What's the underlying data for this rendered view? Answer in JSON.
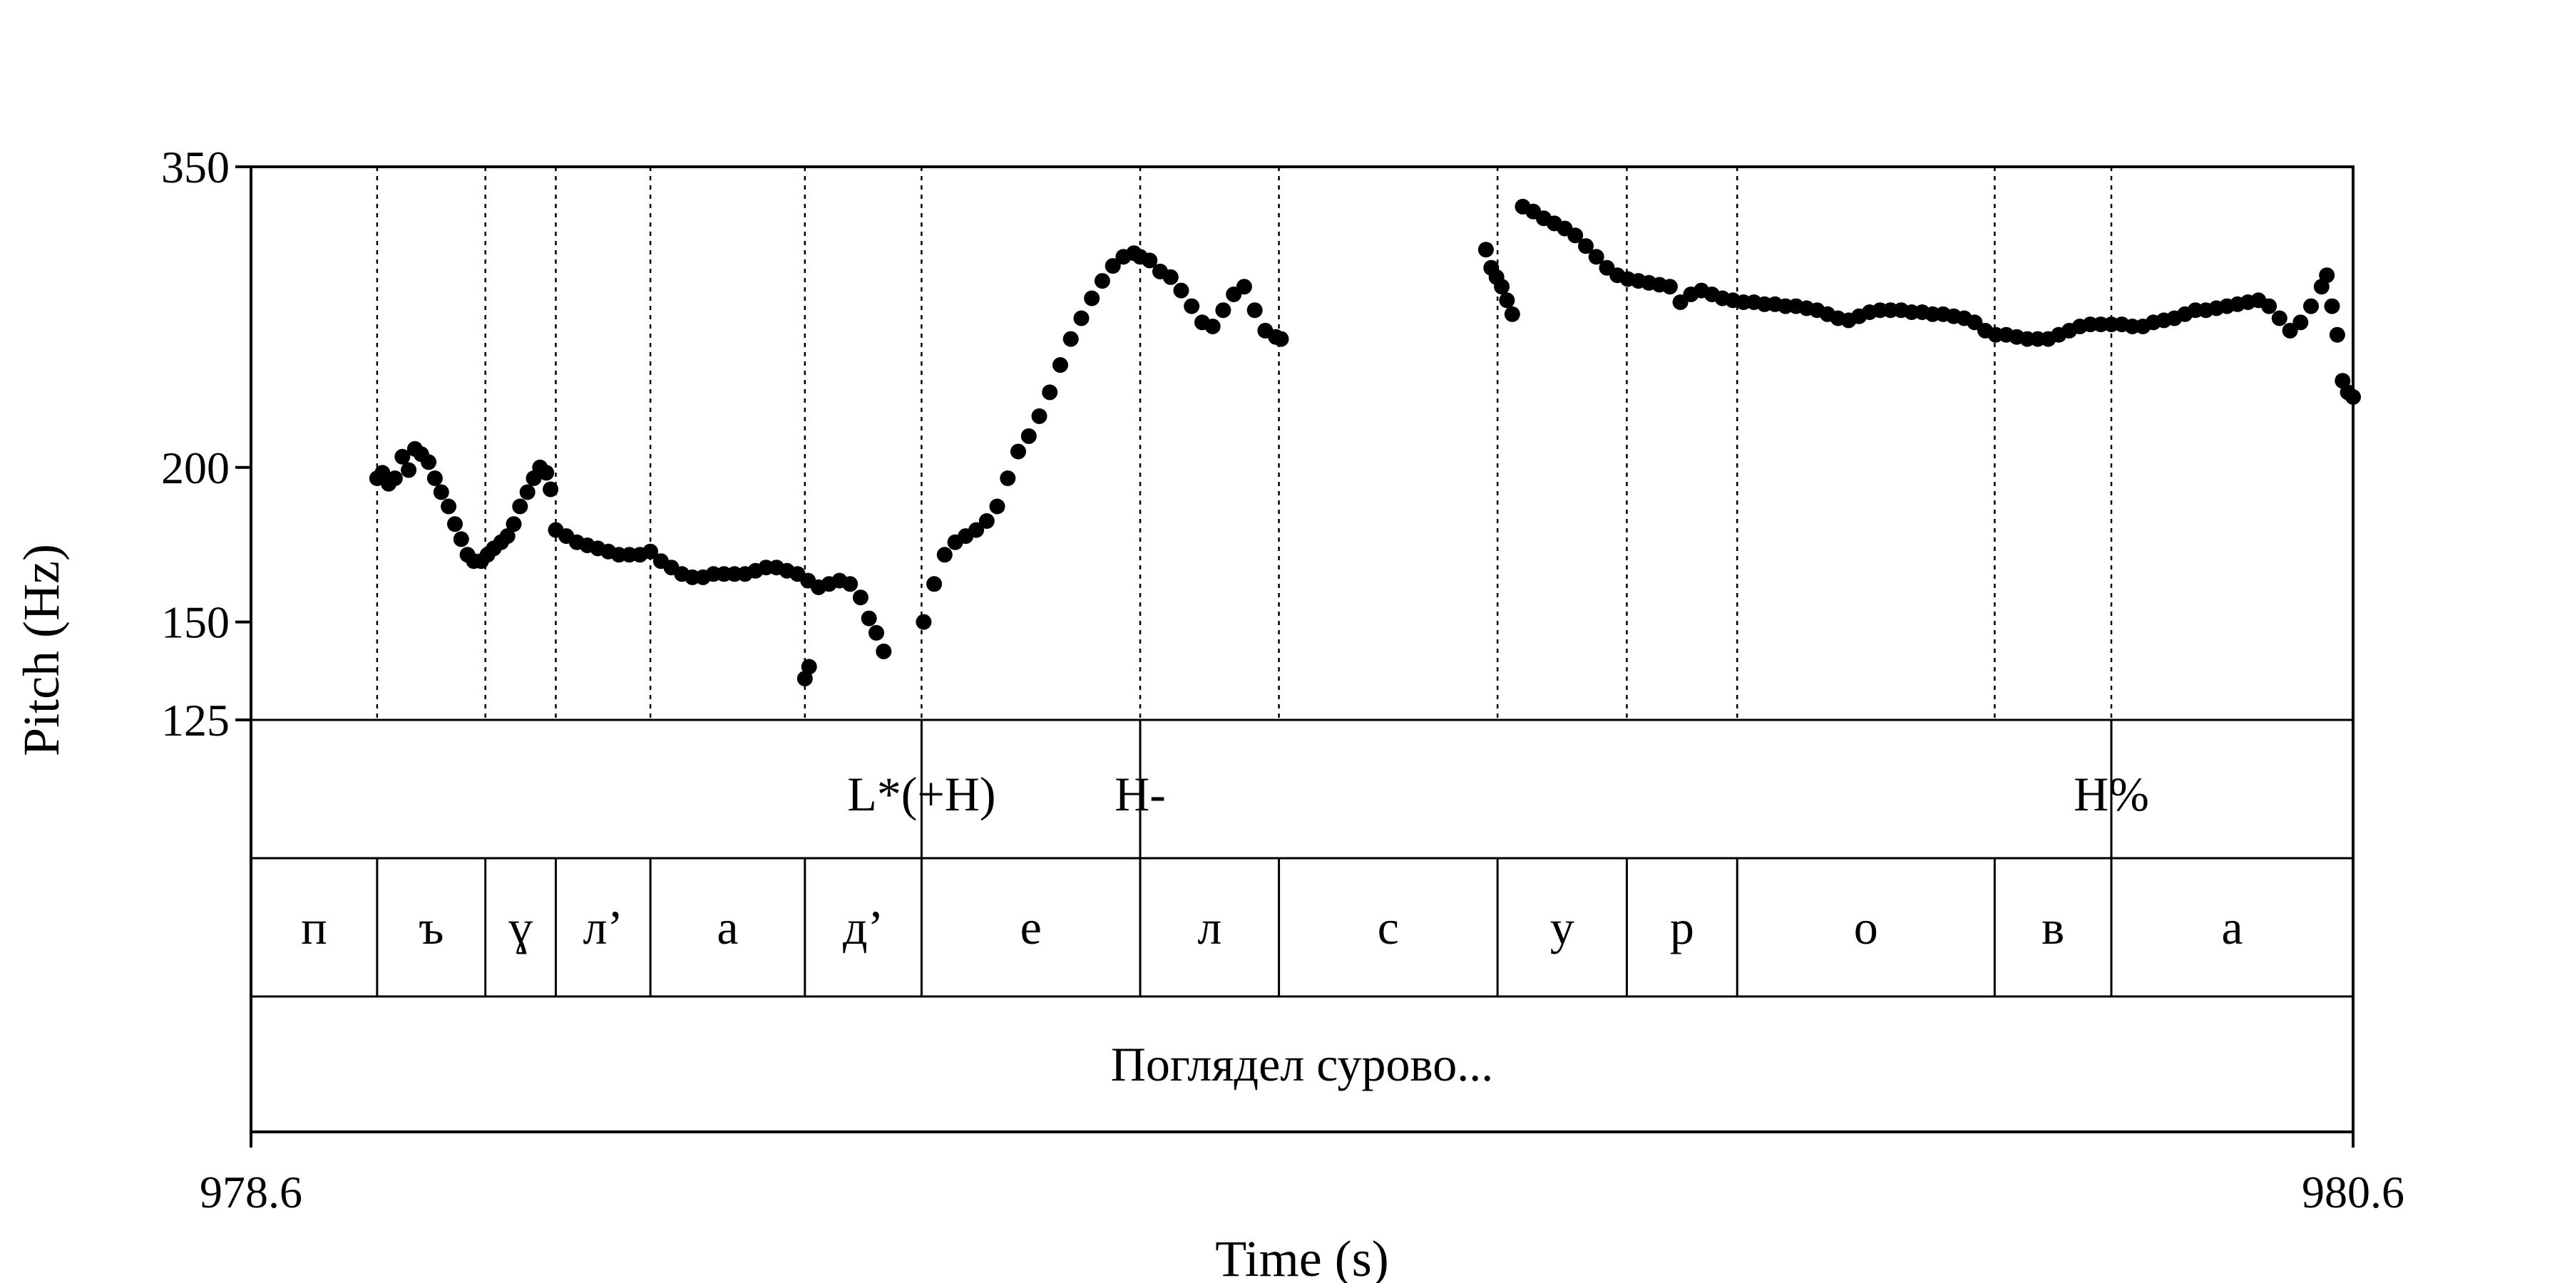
{
  "chart_data": {
    "type": "scatter",
    "title": "",
    "xlabel": "Time (s)",
    "ylabel": "Pitch (Hz)",
    "x_range": [
      978.6,
      980.6
    ],
    "y_range": [
      125,
      350
    ],
    "y_scale": "log",
    "x_ticks": [
      "978.6",
      "980.6"
    ],
    "y_ticks": [
      {
        "value": 125,
        "label": "125"
      },
      {
        "value": 150,
        "label": "150"
      },
      {
        "value": 200,
        "label": "200"
      },
      {
        "value": 350,
        "label": "350"
      }
    ],
    "point_color": "#000000",
    "tones": [
      {
        "label": "L*(+H)",
        "time": 979.238
      },
      {
        "label": "H-",
        "time": 979.446
      },
      {
        "label": "H%",
        "time": 980.37
      }
    ],
    "segments": [
      {
        "label": "п",
        "start": 978.6,
        "end": 978.72
      },
      {
        "label": "ъ",
        "start": 978.72,
        "end": 978.823
      },
      {
        "label": "ɣ",
        "start": 978.823,
        "end": 978.89
      },
      {
        "label": "л’",
        "start": 978.89,
        "end": 978.98
      },
      {
        "label": "а",
        "start": 978.98,
        "end": 979.127
      },
      {
        "label": "д’",
        "start": 979.127,
        "end": 979.238
      },
      {
        "label": "е",
        "start": 979.238,
        "end": 979.446
      },
      {
        "label": "л",
        "start": 979.446,
        "end": 979.578
      },
      {
        "label": "с",
        "start": 979.578,
        "end": 979.786
      },
      {
        "label": "у",
        "start": 979.786,
        "end": 979.909
      },
      {
        "label": "р",
        "start": 979.909,
        "end": 980.014
      },
      {
        "label": "о",
        "start": 980.014,
        "end": 980.259
      },
      {
        "label": "в",
        "start": 980.259,
        "end": 980.37
      },
      {
        "label": "а",
        "start": 980.37,
        "end": 980.6
      }
    ],
    "utterance": {
      "label": "Поглядел сурово...",
      "start": 978.6,
      "end": 980.6
    },
    "series": [
      {
        "points": [
          [
            978.72,
            196
          ],
          [
            978.725,
            198
          ],
          [
            978.731,
            194
          ],
          [
            978.737,
            196
          ],
          [
            978.744,
            204
          ],
          [
            978.75,
            199
          ],
          [
            978.756,
            207
          ],
          [
            978.762,
            205
          ],
          [
            978.769,
            202
          ],
          [
            978.775,
            196
          ],
          [
            978.781,
            191
          ],
          [
            978.788,
            186
          ],
          [
            978.794,
            180
          ],
          [
            978.8,
            175
          ],
          [
            978.806,
            170
          ],
          [
            978.812,
            168
          ],
          [
            978.819,
            168
          ],
          [
            978.825,
            170
          ],
          [
            978.831,
            172
          ],
          [
            978.838,
            174
          ],
          [
            978.844,
            176
          ],
          [
            978.85,
            180
          ],
          [
            978.856,
            186
          ],
          [
            978.863,
            191
          ],
          [
            978.869,
            196
          ],
          [
            978.875,
            200
          ],
          [
            978.881,
            198
          ],
          [
            978.885,
            192
          ],
          [
            978.89,
            178
          ],
          [
            978.9,
            176
          ],
          [
            978.91,
            174
          ],
          [
            978.92,
            173
          ],
          [
            978.93,
            172
          ],
          [
            978.94,
            171
          ],
          [
            978.95,
            170
          ],
          [
            978.96,
            170
          ],
          [
            978.97,
            170
          ],
          [
            978.98,
            171
          ],
          [
            978.99,
            168
          ],
          [
            979.0,
            166
          ],
          [
            979.01,
            164
          ],
          [
            979.02,
            163
          ],
          [
            979.03,
            163
          ],
          [
            979.04,
            164
          ],
          [
            979.05,
            164
          ],
          [
            979.06,
            164
          ],
          [
            979.07,
            164
          ],
          [
            979.08,
            165
          ],
          [
            979.09,
            166
          ],
          [
            979.1,
            166
          ],
          [
            979.11,
            165
          ],
          [
            979.12,
            164
          ],
          [
            979.13,
            162
          ],
          [
            979.14,
            160
          ],
          [
            979.15,
            161
          ],
          [
            979.16,
            162
          ],
          [
            979.17,
            161
          ],
          [
            979.18,
            157
          ],
          [
            979.188,
            151
          ],
          [
            979.195,
            147
          ],
          [
            979.202,
            142
          ],
          [
            979.127,
            135
          ],
          [
            979.131,
            138
          ],
          [
            979.24,
            150
          ],
          [
            979.25,
            161
          ],
          [
            979.26,
            170
          ],
          [
            979.27,
            174
          ],
          [
            979.28,
            176
          ],
          [
            979.29,
            178
          ],
          [
            979.3,
            181
          ],
          [
            979.31,
            186
          ],
          [
            979.32,
            196
          ],
          [
            979.33,
            206
          ],
          [
            979.34,
            212
          ],
          [
            979.35,
            220
          ],
          [
            979.36,
            230
          ],
          [
            979.37,
            242
          ],
          [
            979.38,
            254
          ],
          [
            979.39,
            264
          ],
          [
            979.4,
            274
          ],
          [
            979.41,
            283
          ],
          [
            979.42,
            291
          ],
          [
            979.43,
            296
          ],
          [
            979.44,
            298
          ],
          [
            979.446,
            296
          ],
          [
            979.455,
            294
          ],
          [
            979.465,
            288
          ],
          [
            979.475,
            285
          ],
          [
            979.485,
            278
          ],
          [
            979.495,
            270
          ],
          [
            979.505,
            262
          ],
          [
            979.515,
            260
          ],
          [
            979.525,
            268
          ],
          [
            979.535,
            276
          ],
          [
            979.545,
            280
          ],
          [
            979.555,
            268
          ],
          [
            979.565,
            258
          ],
          [
            979.575,
            255
          ],
          [
            979.58,
            254
          ],
          [
            979.775,
            300
          ],
          [
            979.78,
            290
          ],
          [
            979.785,
            285
          ],
          [
            979.79,
            280
          ],
          [
            979.795,
            273
          ],
          [
            979.8,
            266
          ],
          [
            979.81,
            325
          ],
          [
            979.82,
            322
          ],
          [
            979.83,
            318
          ],
          [
            979.84,
            315
          ],
          [
            979.85,
            312
          ],
          [
            979.86,
            308
          ],
          [
            979.87,
            302
          ],
          [
            979.88,
            296
          ],
          [
            979.89,
            290
          ],
          [
            979.9,
            286
          ],
          [
            979.91,
            284
          ],
          [
            979.92,
            283
          ],
          [
            979.93,
            282
          ],
          [
            979.94,
            281
          ],
          [
            979.95,
            280
          ],
          [
            979.96,
            272
          ],
          [
            979.97,
            276
          ],
          [
            979.98,
            278
          ],
          [
            979.99,
            276
          ],
          [
            980.0,
            274
          ],
          [
            980.01,
            273
          ],
          [
            980.02,
            272
          ],
          [
            980.03,
            272
          ],
          [
            980.04,
            271
          ],
          [
            980.05,
            271
          ],
          [
            980.06,
            270
          ],
          [
            980.07,
            270
          ],
          [
            980.08,
            269
          ],
          [
            980.09,
            268
          ],
          [
            980.1,
            266
          ],
          [
            980.11,
            264
          ],
          [
            980.12,
            263
          ],
          [
            980.13,
            265
          ],
          [
            980.14,
            267
          ],
          [
            980.15,
            268
          ],
          [
            980.16,
            268
          ],
          [
            980.17,
            268
          ],
          [
            980.18,
            267
          ],
          [
            980.19,
            267
          ],
          [
            980.2,
            266
          ],
          [
            980.21,
            266
          ],
          [
            980.22,
            265
          ],
          [
            980.23,
            264
          ],
          [
            980.24,
            262
          ],
          [
            980.25,
            258
          ],
          [
            980.26,
            256
          ],
          [
            980.27,
            256
          ],
          [
            980.28,
            255
          ],
          [
            980.29,
            254
          ],
          [
            980.3,
            254
          ],
          [
            980.31,
            254
          ],
          [
            980.32,
            256
          ],
          [
            980.33,
            258
          ],
          [
            980.34,
            260
          ],
          [
            980.35,
            261
          ],
          [
            980.36,
            261
          ],
          [
            980.37,
            261
          ],
          [
            980.38,
            261
          ],
          [
            980.39,
            260
          ],
          [
            980.4,
            260
          ],
          [
            980.41,
            262
          ],
          [
            980.42,
            263
          ],
          [
            980.43,
            264
          ],
          [
            980.44,
            266
          ],
          [
            980.45,
            268
          ],
          [
            980.46,
            268
          ],
          [
            980.47,
            269
          ],
          [
            980.48,
            270
          ],
          [
            980.49,
            271
          ],
          [
            980.5,
            272
          ],
          [
            980.51,
            273
          ],
          [
            980.52,
            270
          ],
          [
            980.53,
            264
          ],
          [
            980.54,
            258
          ],
          [
            980.55,
            262
          ],
          [
            980.56,
            270
          ],
          [
            980.57,
            280
          ],
          [
            980.575,
            286
          ],
          [
            980.58,
            270
          ],
          [
            980.585,
            256
          ],
          [
            980.59,
            235
          ],
          [
            980.595,
            230
          ],
          [
            980.6,
            228
          ]
        ]
      }
    ]
  }
}
